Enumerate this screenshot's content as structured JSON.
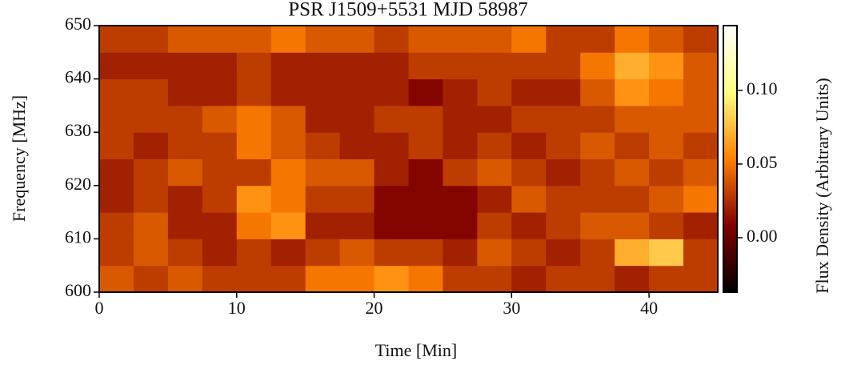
{
  "chart_data": {
    "type": "heatmap",
    "title": "PSR J1509+5531 MJD 58987",
    "x_label": "Time [Min]",
    "y_label": "Frequency [MHz]",
    "colorbar_label": "Flux Density (Arbitrary Units)",
    "x": [
      0,
      2.5,
      5,
      7.5,
      10,
      12.5,
      15,
      17.5,
      20,
      22.5,
      25,
      27.5,
      30,
      32.5,
      35,
      37.5,
      40,
      42.5,
      45
    ],
    "y": [
      600,
      605,
      610,
      615,
      620,
      625,
      630,
      635,
      640,
      645,
      650
    ],
    "values": [
      [
        0.04,
        0.03,
        0.04,
        0.03,
        0.03,
        0.03,
        0.05,
        0.05,
        0.06,
        0.05,
        0.03,
        0.03,
        0.02,
        0.03,
        0.03,
        0.02,
        0.03,
        0.03
      ],
      [
        0.03,
        0.04,
        0.03,
        0.02,
        0.03,
        0.02,
        0.03,
        0.04,
        0.03,
        0.03,
        0.02,
        0.04,
        0.03,
        0.02,
        0.03,
        0.07,
        0.08,
        0.03
      ],
      [
        0.03,
        0.04,
        0.02,
        0.02,
        0.05,
        0.06,
        0.02,
        0.02,
        0.01,
        0.01,
        0.01,
        0.03,
        0.02,
        0.03,
        0.04,
        0.04,
        0.03,
        0.02
      ],
      [
        0.02,
        0.03,
        0.02,
        0.03,
        0.06,
        0.05,
        0.03,
        0.03,
        0.01,
        0.01,
        0.01,
        0.02,
        0.04,
        0.03,
        0.03,
        0.03,
        0.04,
        0.05
      ],
      [
        0.02,
        0.03,
        0.04,
        0.03,
        0.03,
        0.05,
        0.04,
        0.04,
        0.02,
        0.01,
        0.03,
        0.04,
        0.03,
        0.02,
        0.03,
        0.04,
        0.03,
        0.04
      ],
      [
        0.03,
        0.02,
        0.03,
        0.03,
        0.05,
        0.04,
        0.03,
        0.02,
        0.02,
        0.03,
        0.02,
        0.03,
        0.02,
        0.03,
        0.04,
        0.03,
        0.04,
        0.03
      ],
      [
        0.03,
        0.03,
        0.03,
        0.04,
        0.05,
        0.04,
        0.02,
        0.02,
        0.03,
        0.03,
        0.02,
        0.02,
        0.03,
        0.03,
        0.03,
        0.04,
        0.04,
        0.04
      ],
      [
        0.03,
        0.03,
        0.02,
        0.02,
        0.03,
        0.02,
        0.02,
        0.02,
        0.02,
        0.01,
        0.02,
        0.03,
        0.02,
        0.02,
        0.04,
        0.06,
        0.05,
        0.04
      ],
      [
        0.02,
        0.02,
        0.02,
        0.02,
        0.03,
        0.02,
        0.02,
        0.02,
        0.02,
        0.03,
        0.03,
        0.03,
        0.03,
        0.03,
        0.05,
        0.07,
        0.06,
        0.04
      ],
      [
        0.03,
        0.03,
        0.04,
        0.04,
        0.04,
        0.05,
        0.04,
        0.04,
        0.03,
        0.04,
        0.04,
        0.04,
        0.05,
        0.03,
        0.03,
        0.05,
        0.04,
        0.03
      ]
    ],
    "xlim": [
      0,
      45
    ],
    "ylim": [
      600,
      650
    ],
    "xticks": [
      0,
      10,
      20,
      30,
      40
    ],
    "yticks": [
      600,
      610,
      620,
      630,
      640,
      650
    ],
    "clim": [
      -0.037,
      0.144
    ],
    "cticks": [
      {
        "value": 0,
        "label": "0.00"
      },
      {
        "value": 0.05,
        "label": "0.05"
      },
      {
        "value": 0.1,
        "label": "0.10"
      }
    ]
  }
}
